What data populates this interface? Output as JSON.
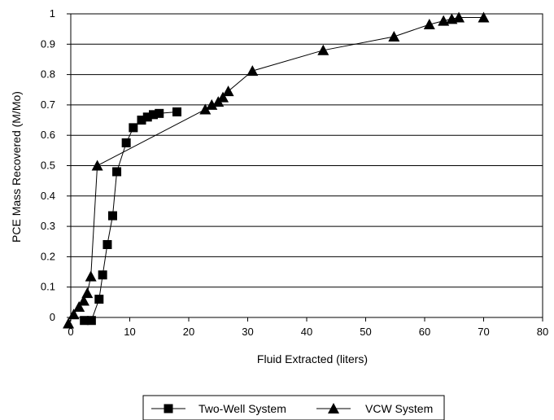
{
  "chart_data": {
    "type": "scatter",
    "title": "",
    "xlabel": "Fluid Extracted (liters)",
    "ylabel": "PCE Mass Recovered (M/Mo)",
    "xlim": [
      0,
      80
    ],
    "ylim": [
      0,
      1
    ],
    "x_ticks": [
      "0",
      "10",
      "20",
      "30",
      "40",
      "50",
      "60",
      "70",
      "80"
    ],
    "y_ticks": [
      "0",
      "0.1",
      "0.2",
      "0.3",
      "0.4",
      "0.5",
      "0.6",
      "0.7",
      "0.8",
      "0.9",
      "1"
    ],
    "grid": "horizontal",
    "legend_position": "bottom",
    "series": [
      {
        "name": "Two-Well System",
        "marker": "square",
        "color": "#000000",
        "points": [
          [
            2.3,
            -0.01
          ],
          [
            3.5,
            -0.01
          ],
          [
            4.8,
            0.06
          ],
          [
            5.4,
            0.14
          ],
          [
            6.2,
            0.24
          ],
          [
            7.1,
            0.335
          ],
          [
            7.8,
            0.48
          ],
          [
            9.4,
            0.575
          ],
          [
            10.6,
            0.625
          ],
          [
            12.0,
            0.65
          ],
          [
            13.0,
            0.66
          ],
          [
            14.0,
            0.668
          ],
          [
            15.0,
            0.672
          ],
          [
            18.0,
            0.677
          ]
        ]
      },
      {
        "name": "VCW System",
        "marker": "triangle",
        "color": "#000000",
        "points": [
          [
            -0.4,
            -0.02
          ],
          [
            0.5,
            0.01
          ],
          [
            1.4,
            0.035
          ],
          [
            2.2,
            0.055
          ],
          [
            2.8,
            0.08
          ],
          [
            3.4,
            0.135
          ],
          [
            4.5,
            0.5
          ],
          [
            22.8,
            0.685
          ],
          [
            23.9,
            0.7
          ],
          [
            25.0,
            0.71
          ],
          [
            25.8,
            0.725
          ],
          [
            26.7,
            0.745
          ],
          [
            30.8,
            0.812
          ],
          [
            42.8,
            0.88
          ],
          [
            54.8,
            0.925
          ],
          [
            60.8,
            0.965
          ],
          [
            63.2,
            0.977
          ],
          [
            64.6,
            0.983
          ],
          [
            65.8,
            0.988
          ],
          [
            70.0,
            0.988
          ]
        ]
      }
    ]
  }
}
